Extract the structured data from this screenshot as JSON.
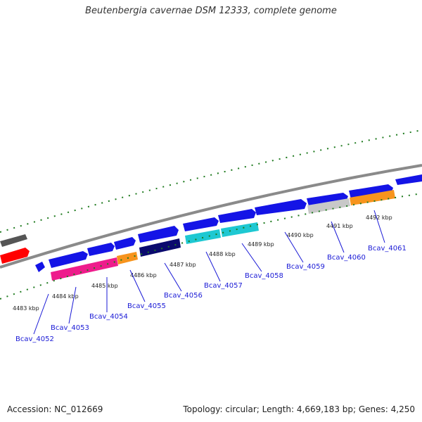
{
  "title": "Beutenbergia cavernae DSM 12333, complete genome",
  "footer": {
    "accession": "Accession: NC_012669",
    "topology": "Topology: circular; Length: 4,669,183 bp; Genes: 4,250"
  },
  "colors": {
    "backbone": "#8a8a8a",
    "tick": "#1e7a1e",
    "label": "#1a1ad6"
  },
  "kbp_labels": [
    "4483 kbp",
    "4484 kbp",
    "4485 kbp",
    "4486 kbp",
    "4487 kbp",
    "4488 kbp",
    "4489 kbp",
    "4490 kbp",
    "4491 kbp",
    "4492 kbp"
  ],
  "genes": [
    {
      "name": "Bcav_4052",
      "strand": "+",
      "color": "#1414e6",
      "annotation_color": null
    },
    {
      "name": "Bcav_4053",
      "strand": "+",
      "color": "#1414e6",
      "annotation_color": "#ee1c8c"
    },
    {
      "name": "Bcav_4054",
      "strand": "+",
      "color": "#1414e6",
      "annotation_color": null
    },
    {
      "name": "Bcav_4055",
      "strand": "+",
      "color": "#1414e6",
      "annotation_color": "#f7941d"
    },
    {
      "name": "Bcav_4056",
      "strand": "+",
      "color": "#1414e6",
      "annotation_color": "#0a0a6e"
    },
    {
      "name": "Bcav_4057",
      "strand": "+",
      "color": "#1414e6",
      "annotation_color": "#1ec8d2"
    },
    {
      "name": "Bcav_4058",
      "strand": "+",
      "color": "#1414e6",
      "annotation_color": "#1ec8d2"
    },
    {
      "name": "Bcav_4059",
      "strand": "+",
      "color": "#1414e6",
      "annotation_color": null
    },
    {
      "name": "Bcav_4060",
      "strand": "+",
      "color": "#1414e6",
      "annotation_color": "#c8c8c8"
    },
    {
      "name": "Bcav_4061",
      "strand": "+",
      "color": "#1414e6",
      "annotation_color": "#f7941d"
    }
  ]
}
